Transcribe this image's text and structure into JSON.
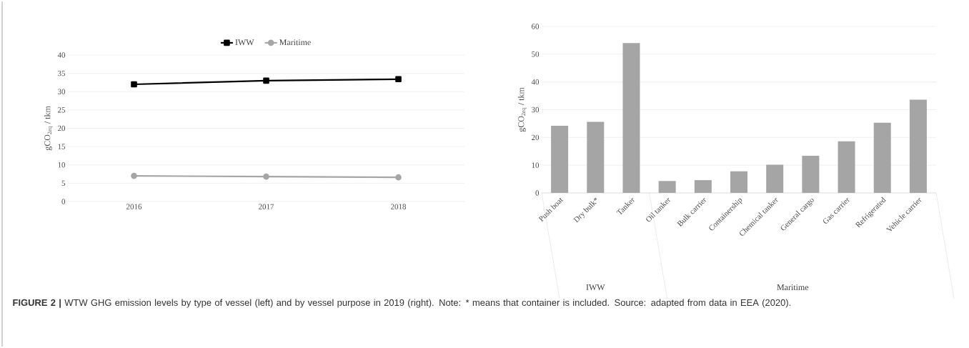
{
  "chart_data": [
    {
      "type": "line",
      "ylabel": "gCO$_{2eq}$ / tkm",
      "categories": [
        "2016",
        "2017",
        "2018"
      ],
      "series": [
        {
          "name": "IWW",
          "color": "#000000",
          "marker": "square",
          "values": [
            32.0,
            33.0,
            33.4
          ]
        },
        {
          "name": "Maritime",
          "color": "#a6a6a6",
          "marker": "circle",
          "values": [
            7.0,
            6.8,
            6.6
          ]
        }
      ],
      "ylim": [
        0,
        40
      ],
      "yticks": [
        0,
        5,
        10,
        15,
        20,
        25,
        30,
        35,
        40
      ],
      "grid": "y",
      "legend": "top",
      "annotations": [
        "**FIGURE 2 |** WTW GHG emission levels by type of vessel (left) and by vessel purpose in 2019 (right). Note: * means that container is included. Source: adapted from data in EEA (2020)."
      ]
    },
    {
      "type": "bar",
      "ylabel": "gCO$_{2eq}$ / tkm",
      "categories": [
        "Push boat",
        "Dry bulk*",
        "Tanker",
        "Oil tanker",
        "Bulk carrier",
        "Containership",
        "Chemical tanker",
        "General cargo",
        "Gas carrier",
        "Refrigerated",
        "Vehicle carrier"
      ],
      "values": [
        24.2,
        25.6,
        54.0,
        4.3,
        4.6,
        7.8,
        10.2,
        13.4,
        18.6,
        25.3,
        33.6
      ],
      "color": "#a5a5a5",
      "ylim": [
        0,
        60
      ],
      "yticks": [
        0,
        10,
        20,
        30,
        40,
        50,
        60
      ],
      "grid": "y",
      "annotations": [
        "IWW",
        "Maritime"
      ]
    }
  ]
}
